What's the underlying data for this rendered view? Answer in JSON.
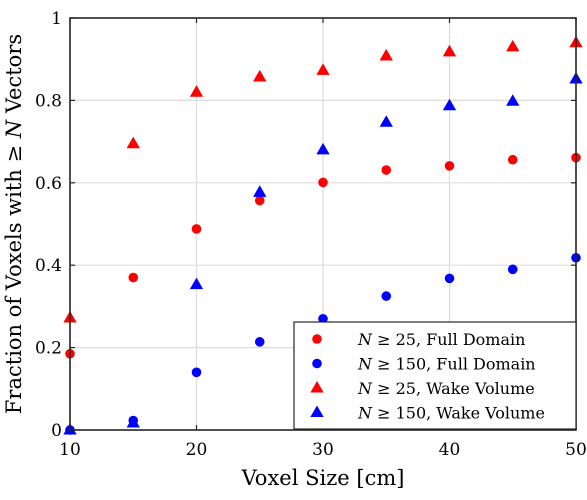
{
  "chart_data": {
    "type": "scatter",
    "xlabel": "Voxel Size [cm]",
    "ylabel": "Fraction of Voxels with ≥ N Vectors",
    "xlim": [
      10,
      50
    ],
    "ylim": [
      0,
      1
    ],
    "xticks": [
      "10",
      "20",
      "30",
      "40",
      "50"
    ],
    "yticks": [
      "0",
      "0.2",
      "0.4",
      "0.6",
      "0.8",
      "1"
    ],
    "grid": true,
    "legend_position": "bottom-right",
    "x": [
      10,
      15,
      20,
      25,
      30,
      35,
      40,
      45,
      50
    ],
    "series": [
      {
        "name": "N ≥ 25, Full Domain",
        "marker": "circle",
        "color": "#ff0000",
        "values": [
          0.185,
          0.37,
          0.488,
          0.557,
          0.601,
          0.631,
          0.641,
          0.656,
          0.661
        ]
      },
      {
        "name": "N ≥ 150, Full Domain",
        "marker": "circle",
        "color": "#0000ff",
        "values": [
          0.0,
          0.023,
          0.14,
          0.214,
          0.27,
          0.325,
          0.368,
          0.39,
          0.418
        ]
      },
      {
        "name": "N ≥ 25, Wake Volume",
        "marker": "triangle",
        "color": "#ff0000",
        "values": [
          0.272,
          0.695,
          0.82,
          0.857,
          0.873,
          0.908,
          0.918,
          0.93,
          0.94
        ]
      },
      {
        "name": "N ≥ 150, Wake Volume",
        "marker": "triangle",
        "color": "#0000ff",
        "values": [
          0.0,
          0.017,
          0.353,
          0.577,
          0.68,
          0.747,
          0.787,
          0.798,
          0.852
        ]
      }
    ]
  }
}
